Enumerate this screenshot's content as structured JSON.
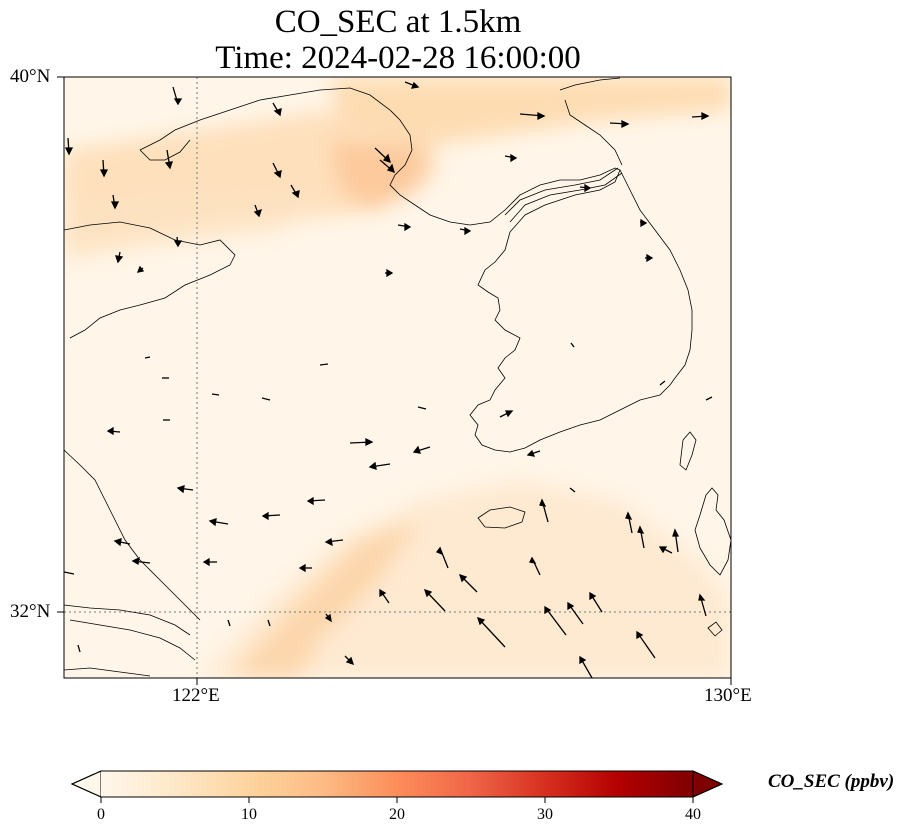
{
  "title": {
    "line1": "CO_SEC at 1.5km",
    "line2": "Time: 2024-02-28 16:00:00"
  },
  "axes": {
    "lat_labels": [
      "40°N",
      "32°N"
    ],
    "lon_labels": [
      "122°E",
      "130°E"
    ],
    "lon_range": [
      120,
      130
    ],
    "lat_range": [
      31,
      40
    ],
    "gridlines": "dotted"
  },
  "colorbar": {
    "title": "CO_SEC (ppbv)",
    "ticks": [
      "0",
      "10",
      "20",
      "30",
      "40"
    ],
    "colormap": "OrRd",
    "range": [
      0,
      40
    ],
    "extend": "both",
    "colors": [
      "#fff7ec",
      "#fee8c8",
      "#fdd49e",
      "#fdbb84",
      "#fc8d59",
      "#ef6548",
      "#d7301f",
      "#b30000",
      "#7f0000"
    ]
  },
  "map": {
    "field": "CO_SEC",
    "level": "1.5km",
    "plume_color": "#fdd49e",
    "vectors": "wind arrows"
  }
}
